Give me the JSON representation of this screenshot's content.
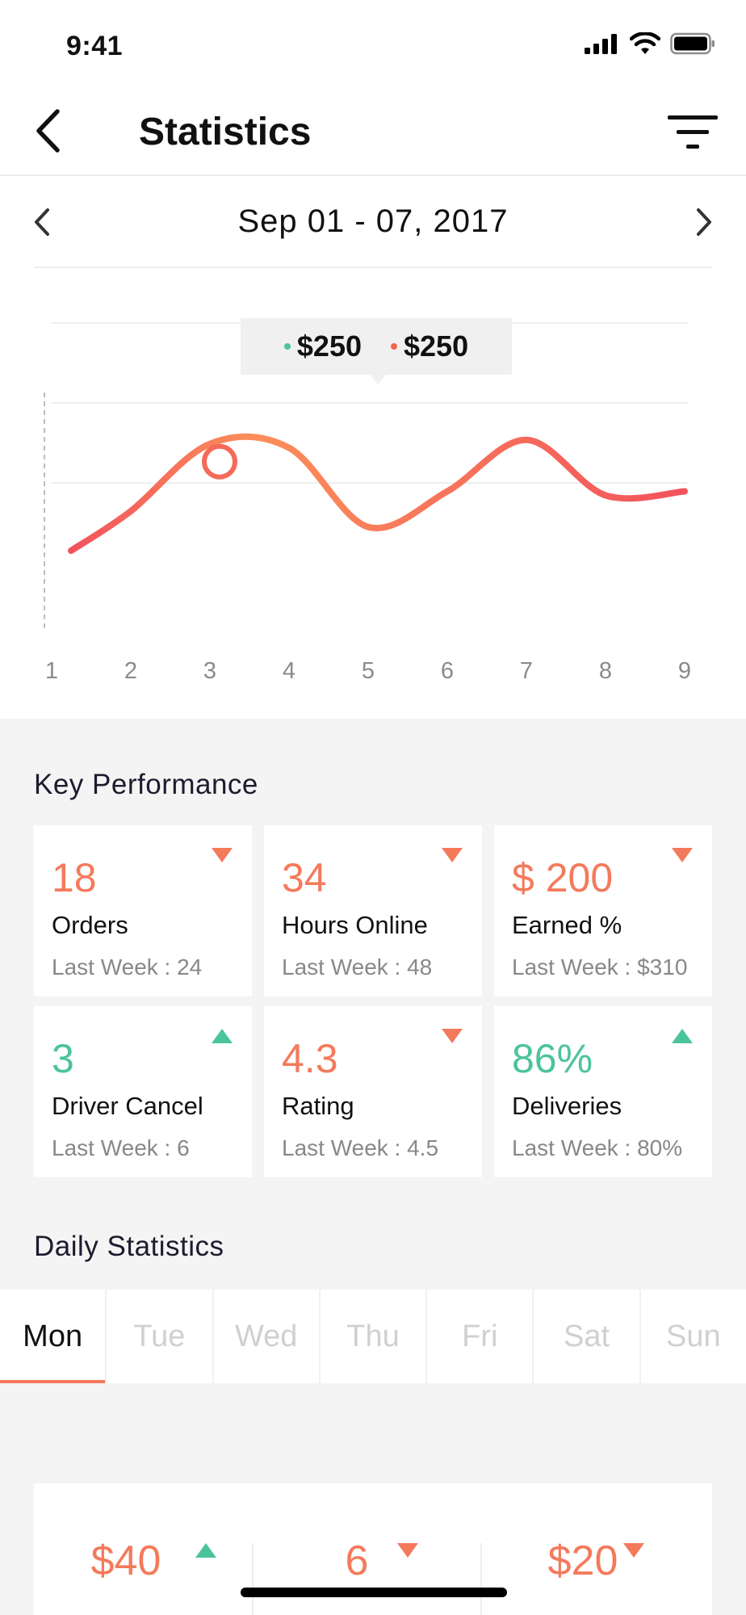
{
  "status_bar": {
    "time": "9:41"
  },
  "header": {
    "title": "Statistics"
  },
  "date_range": {
    "label": "Sep 01 - 07,  2017"
  },
  "chart_data": {
    "type": "line",
    "x": [
      1,
      2,
      3,
      4,
      5,
      6,
      7,
      8,
      9
    ],
    "tick_labels": [
      "1",
      "2",
      "3",
      "4",
      "5",
      "6",
      "7",
      "8",
      "9"
    ],
    "series": [
      {
        "values": [
          100,
          150,
          235,
          230,
          130,
          175,
          240,
          170,
          175
        ]
      }
    ],
    "highlighted_x": 3,
    "grid": true,
    "tooltip": [
      {
        "value": "$250",
        "color": "#4cc49a"
      },
      {
        "value": "$250",
        "color": "#f2624e"
      }
    ],
    "colors": {
      "line_start": "#f2535c",
      "line_end": "#fb8f5a"
    }
  },
  "key_performance": {
    "title": "Key Performance",
    "cards": [
      {
        "value": "18",
        "label": "Orders",
        "last_week": "Last Week : 24",
        "trend": "down",
        "color": "#f47a5c"
      },
      {
        "value": "34",
        "label": "Hours Online",
        "last_week": "Last Week : 48",
        "trend": "down",
        "color": "#f47a5c"
      },
      {
        "value": "$ 200",
        "label": "Earned %",
        "last_week": "Last Week : $310",
        "trend": "down",
        "color": "#f47a5c"
      },
      {
        "value": "3",
        "label": "Driver Cancel",
        "last_week": "Last Week : 6",
        "trend": "up",
        "color": "#4cc49a"
      },
      {
        "value": "4.3",
        "label": "Rating",
        "last_week": "Last Week : 4.5",
        "trend": "down",
        "color": "#f47a5c"
      },
      {
        "value": "86%",
        "label": "Deliveries",
        "last_week": "Last Week : 80%",
        "trend": "up",
        "color": "#4cc49a"
      }
    ]
  },
  "daily_statistics": {
    "title": "Daily Statistics",
    "days": [
      "Mon",
      "Tue",
      "Wed",
      "Thu",
      "Fri",
      "Sat",
      "Sun"
    ],
    "active_day": "Mon",
    "values": [
      {
        "value": "$40",
        "trend": "up"
      },
      {
        "value": "6",
        "trend": "down"
      },
      {
        "value": "$20",
        "trend": "down"
      }
    ]
  },
  "colors": {
    "accent": "#f47a5c",
    "positive": "#4cc49a"
  }
}
